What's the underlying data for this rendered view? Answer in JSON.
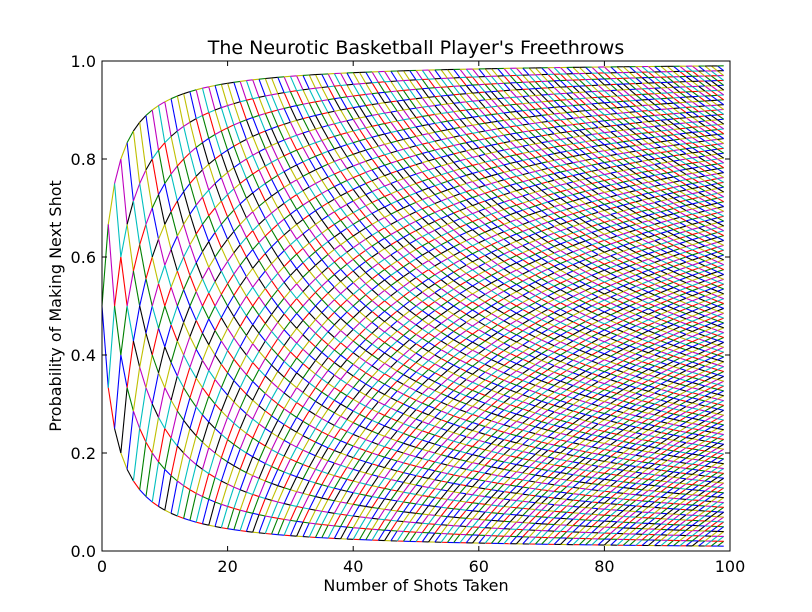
{
  "chart_data": {
    "type": "line",
    "title": "The Neurotic Basketball Player's Freethrows",
    "xlabel": "Number of Shots Taken",
    "ylabel": "Probability of Making Next Shot",
    "xlim": [
      0,
      100
    ],
    "ylim": [
      0.0,
      1.0
    ],
    "x_ticks": [
      0,
      20,
      40,
      60,
      80,
      100
    ],
    "x_tick_labels": [
      "0",
      "20",
      "40",
      "60",
      "80",
      "100"
    ],
    "y_ticks": [
      0.0,
      0.2,
      0.4,
      0.6,
      0.8,
      1.0
    ],
    "y_tick_labels": [
      "0.0",
      "0.2",
      "0.4",
      "0.6",
      "0.8",
      "1.0"
    ],
    "grid": false,
    "legend": "none",
    "x": [
      0,
      99
    ],
    "series_rule": "After n shots with k made, probability of making next shot = (k+1)/(n+2); one line segment drawn for every possible path step",
    "colors": [
      "#0000ff",
      "#008000",
      "#ff0000",
      "#00bfbf",
      "#bf00bf",
      "#bfbf00",
      "#000000"
    ],
    "frame_color": "#000000",
    "background": "#ffffff"
  }
}
